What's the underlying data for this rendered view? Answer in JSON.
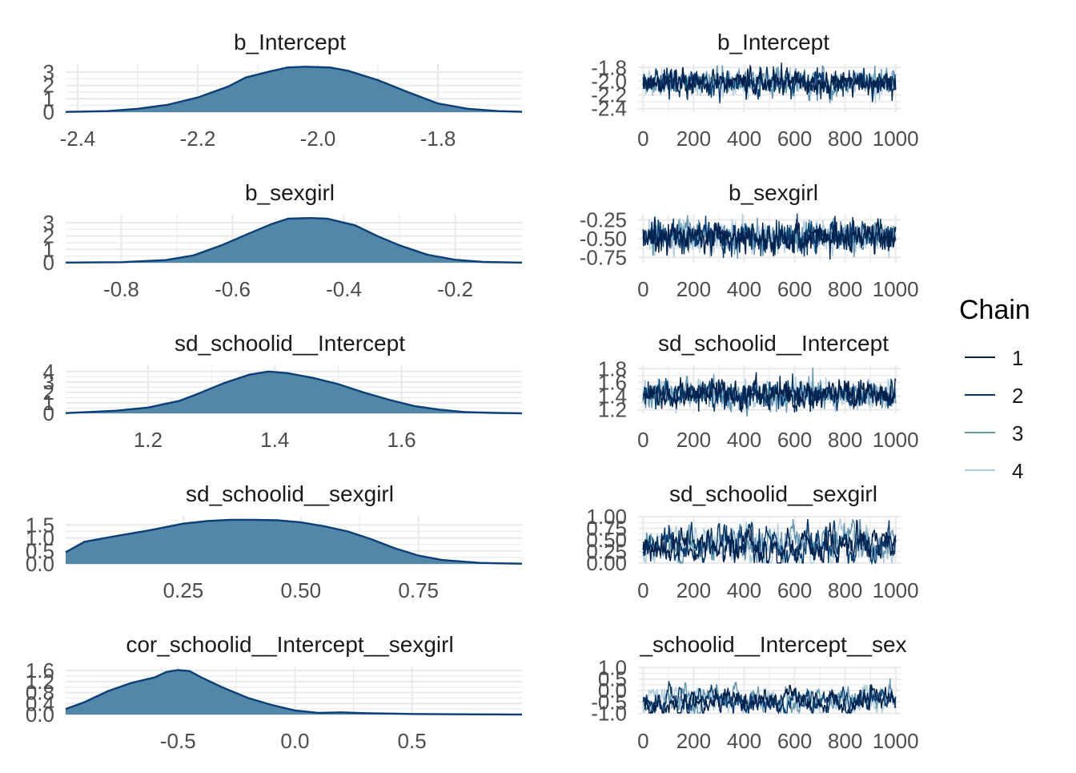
{
  "chart_data": [
    {
      "type": "area",
      "title": "b_Intercept",
      "xlim": [
        -2.42,
        -1.66
      ],
      "ylim": [
        0,
        3.6
      ],
      "xticks": [
        -2.4,
        -2.2,
        -2.0,
        -1.8
      ],
      "xtick_labels": [
        "-2.4",
        "-2.2",
        "-2.0",
        "-1.8"
      ],
      "yticks": [
        0,
        1,
        2,
        3
      ],
      "ytick_labels": [
        "0",
        "1",
        "2",
        "3"
      ],
      "density": {
        "x": [
          -2.42,
          -2.35,
          -2.3,
          -2.25,
          -2.2,
          -2.15,
          -2.12,
          -2.08,
          -2.05,
          -2.02,
          -1.98,
          -1.95,
          -1.9,
          -1.85,
          -1.8,
          -1.75,
          -1.7,
          -1.66
        ],
        "y": [
          0.02,
          0.08,
          0.25,
          0.55,
          1.1,
          1.9,
          2.6,
          3.05,
          3.35,
          3.4,
          3.35,
          3.1,
          2.4,
          1.5,
          0.65,
          0.25,
          0.08,
          0.03
        ]
      }
    },
    {
      "type": "line",
      "title": "b_Intercept",
      "xlim": [
        -20,
        1020
      ],
      "ylim": [
        -2.45,
        -1.75
      ],
      "xticks": [
        0,
        200,
        400,
        600,
        800,
        1000
      ],
      "xtick_labels": [
        "0",
        "200",
        "400",
        "600",
        "800",
        "1000"
      ],
      "yticks": [
        -1.8,
        -2.0,
        -2.2,
        -2.4
      ],
      "ytick_labels": [
        "-1.8",
        "-2.0",
        "-2.2",
        "-2.4"
      ],
      "trace": {
        "center": -2.02,
        "spread": 0.09,
        "smooth": 0.45,
        "seed": 11
      }
    },
    {
      "type": "area",
      "title": "b_sexgirl",
      "xlim": [
        -0.9,
        -0.08
      ],
      "ylim": [
        0,
        3.6
      ],
      "xticks": [
        -0.8,
        -0.6,
        -0.4,
        -0.2
      ],
      "xtick_labels": [
        "-0.8",
        "-0.6",
        "-0.4",
        "-0.2"
      ],
      "yticks": [
        0,
        1,
        2,
        3
      ],
      "ytick_labels": [
        "0",
        "1",
        "2",
        "3"
      ],
      "density": {
        "x": [
          -0.9,
          -0.8,
          -0.72,
          -0.67,
          -0.62,
          -0.57,
          -0.53,
          -0.5,
          -0.46,
          -0.43,
          -0.38,
          -0.34,
          -0.3,
          -0.25,
          -0.2,
          -0.15,
          -0.08
        ],
        "y": [
          0.01,
          0.04,
          0.2,
          0.55,
          1.3,
          2.2,
          2.9,
          3.3,
          3.35,
          3.3,
          2.8,
          2.0,
          1.3,
          0.6,
          0.22,
          0.06,
          0.01
        ]
      }
    },
    {
      "type": "line",
      "title": "b_sexgirl",
      "xlim": [
        -20,
        1020
      ],
      "ylim": [
        -0.82,
        -0.18
      ],
      "xticks": [
        0,
        200,
        400,
        600,
        800,
        1000
      ],
      "xtick_labels": [
        "0",
        "200",
        "400",
        "600",
        "800",
        "1000"
      ],
      "yticks": [
        -0.25,
        -0.5,
        -0.75
      ],
      "ytick_labels": [
        "-0.25",
        "-0.50",
        "-0.75"
      ],
      "trace": {
        "center": -0.48,
        "spread": 0.1,
        "smooth": 0.35,
        "seed": 23
      }
    },
    {
      "type": "area",
      "title": "sd_schoolid__Intercept",
      "xlim": [
        1.07,
        1.79
      ],
      "ylim": [
        0,
        4.6
      ],
      "xticks": [
        1.2,
        1.4,
        1.6
      ],
      "xtick_labels": [
        "1.2",
        "1.4",
        "1.6"
      ],
      "yticks": [
        0,
        1,
        2,
        3,
        4
      ],
      "ytick_labels": [
        "0",
        "1",
        "2",
        "3",
        "4"
      ],
      "density": {
        "x": [
          1.07,
          1.15,
          1.2,
          1.25,
          1.28,
          1.32,
          1.36,
          1.39,
          1.42,
          1.46,
          1.5,
          1.54,
          1.58,
          1.62,
          1.66,
          1.7,
          1.75,
          1.79
        ],
        "y": [
          0.02,
          0.25,
          0.55,
          1.2,
          1.9,
          2.9,
          3.7,
          4.0,
          3.85,
          3.4,
          2.8,
          2.0,
          1.3,
          0.7,
          0.35,
          0.12,
          0.04,
          0.01
        ]
      }
    },
    {
      "type": "line",
      "title": "sd_schoolid__Intercept",
      "xlim": [
        -20,
        1020
      ],
      "ylim": [
        1.15,
        1.85
      ],
      "xticks": [
        0,
        200,
        400,
        600,
        800,
        1000
      ],
      "xtick_labels": [
        "0",
        "200",
        "400",
        "600",
        "800",
        "1000"
      ],
      "yticks": [
        1.2,
        1.4,
        1.6,
        1.8
      ],
      "ytick_labels": [
        "1.2",
        "1.4",
        "1.6",
        "1.8"
      ],
      "trace": {
        "center": 1.42,
        "spread": 0.1,
        "smooth": 0.4,
        "seed": 37
      }
    },
    {
      "type": "area",
      "title": "sd_schoolid__sexgirl",
      "xlim": [
        0.0,
        0.97
      ],
      "ylim": [
        0,
        1.85
      ],
      "xticks": [
        0.25,
        0.5,
        0.75
      ],
      "xtick_labels": [
        "0.25",
        "0.50",
        "0.75"
      ],
      "yticks": [
        0,
        0.5,
        1.0,
        1.5
      ],
      "ytick_labels": [
        "0.0",
        "0.5",
        "1.0",
        "1.5"
      ],
      "density": {
        "x": [
          0.0,
          0.04,
          0.1,
          0.18,
          0.25,
          0.3,
          0.35,
          0.4,
          0.45,
          0.5,
          0.55,
          0.6,
          0.65,
          0.7,
          0.75,
          0.8,
          0.88,
          0.97
        ],
        "y": [
          0.45,
          0.85,
          1.05,
          1.3,
          1.55,
          1.65,
          1.7,
          1.7,
          1.68,
          1.6,
          1.45,
          1.25,
          0.95,
          0.6,
          0.32,
          0.15,
          0.04,
          0.01
        ]
      }
    },
    {
      "type": "line",
      "title": "sd_schoolid__sexgirl",
      "xlim": [
        -20,
        1020
      ],
      "ylim": [
        -0.02,
        1.02
      ],
      "xticks": [
        0,
        200,
        400,
        600,
        800,
        1000
      ],
      "xtick_labels": [
        "0",
        "200",
        "400",
        "600",
        "800",
        "1000"
      ],
      "yticks": [
        0.0,
        0.25,
        0.5,
        0.75,
        1.0
      ],
      "ytick_labels": [
        "0.00",
        "0.25",
        "0.50",
        "0.75",
        "1.00"
      ],
      "trace": {
        "center": 0.38,
        "spread": 0.2,
        "smooth": 0.75,
        "seed": 51,
        "clip": [
          0.0,
          0.95
        ]
      }
    },
    {
      "type": "area",
      "title": "cor_schoolid__Intercept__sexgirl",
      "xlim": [
        -0.98,
        0.97
      ],
      "ylim": [
        0,
        1.75
      ],
      "xticks": [
        -0.5,
        0.0,
        0.5
      ],
      "xtick_labels": [
        "-0.5",
        "0.0",
        "0.5"
      ],
      "yticks": [
        0,
        0.4,
        0.8,
        1.2,
        1.6
      ],
      "ytick_labels": [
        "0.0",
        "0.4",
        "0.8",
        "1.2",
        "1.6"
      ],
      "density": {
        "x": [
          -0.98,
          -0.9,
          -0.8,
          -0.7,
          -0.6,
          -0.55,
          -0.5,
          -0.45,
          -0.4,
          -0.3,
          -0.2,
          -0.1,
          0.0,
          0.1,
          0.2,
          0.3,
          0.5,
          0.7,
          0.97
        ],
        "y": [
          0.2,
          0.45,
          0.85,
          1.15,
          1.35,
          1.55,
          1.62,
          1.58,
          1.35,
          0.95,
          0.6,
          0.35,
          0.15,
          0.06,
          0.08,
          0.05,
          0.02,
          0.01,
          0.0
        ]
      }
    },
    {
      "type": "line",
      "title": "_schoolid__Intercept__sex",
      "xlim": [
        -20,
        1020
      ],
      "ylim": [
        -1.05,
        1.05
      ],
      "xticks": [
        0,
        200,
        400,
        600,
        800,
        1000
      ],
      "xtick_labels": [
        "0",
        "200",
        "400",
        "600",
        "800",
        "1000"
      ],
      "yticks": [
        1.0,
        0.5,
        0.0,
        -0.5,
        -1.0
      ],
      "ytick_labels": [
        "1.0",
        "0.5",
        "0.0",
        "-0.5",
        "-1.0"
      ],
      "trace": {
        "center": -0.45,
        "spread": 0.3,
        "smooth": 0.8,
        "seed": 67,
        "clip": [
          -0.98,
          0.98
        ]
      }
    }
  ],
  "legend": {
    "title": "Chain",
    "entries": [
      "1",
      "2",
      "3",
      "4"
    ],
    "colors": [
      "#011f4b",
      "#03396c",
      "#6497b1",
      "#b3cde0"
    ]
  },
  "colors": {
    "density_fill": "#5387a8",
    "density_line": "#0b3f7a",
    "grid": "#ebebeb"
  }
}
